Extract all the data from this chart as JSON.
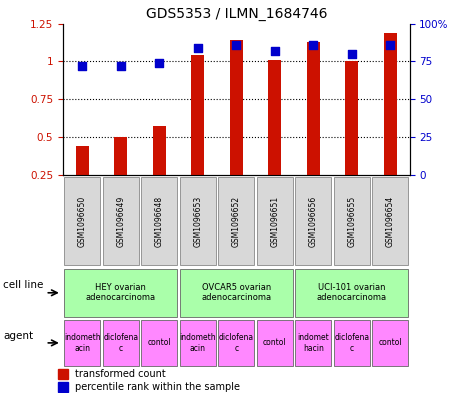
{
  "title": "GDS5353 / ILMN_1684746",
  "samples": [
    "GSM1096650",
    "GSM1096649",
    "GSM1096648",
    "GSM1096653",
    "GSM1096652",
    "GSM1096651",
    "GSM1096656",
    "GSM1096655",
    "GSM1096654"
  ],
  "transformed_count": [
    0.44,
    0.5,
    0.57,
    1.04,
    1.14,
    1.01,
    1.13,
    1.0,
    1.19
  ],
  "percentile_rank": [
    72,
    72,
    74,
    84,
    86,
    82,
    86,
    80,
    86
  ],
  "bar_color": "#cc1100",
  "dot_color": "#0000cc",
  "ylim_left": [
    0.25,
    1.25
  ],
  "ylim_right": [
    0,
    100
  ],
  "yticks_left": [
    0.25,
    0.5,
    0.75,
    1.0,
    1.25
  ],
  "ytick_labels_left": [
    "0.25",
    "0.5",
    "0.75",
    "1",
    "1.25"
  ],
  "yticks_right": [
    0,
    25,
    50,
    75,
    100
  ],
  "ytick_labels_right": [
    "0",
    "25",
    "50",
    "75",
    "100%"
  ],
  "grid_yticks": [
    0.5,
    0.75,
    1.0
  ],
  "cell_lines": [
    {
      "label": "HEY ovarian\nadenocarcinoma",
      "start": 0,
      "end": 3,
      "color": "#aaffaa"
    },
    {
      "label": "OVCAR5 ovarian\nadenocarcinoma",
      "start": 3,
      "end": 6,
      "color": "#aaffaa"
    },
    {
      "label": "UCI-101 ovarian\nadenocarcinoma",
      "start": 6,
      "end": 9,
      "color": "#aaffaa"
    }
  ],
  "agents": [
    {
      "label": "indometh\nacin",
      "start": 0,
      "end": 1,
      "color": "#ff88ff"
    },
    {
      "label": "diclofena\nc",
      "start": 1,
      "end": 2,
      "color": "#ff88ff"
    },
    {
      "label": "contol",
      "start": 2,
      "end": 3,
      "color": "#ff88ff"
    },
    {
      "label": "indometh\nacin",
      "start": 3,
      "end": 4,
      "color": "#ff88ff"
    },
    {
      "label": "diclofena\nc",
      "start": 4,
      "end": 5,
      "color": "#ff88ff"
    },
    {
      "label": "contol",
      "start": 5,
      "end": 6,
      "color": "#ff88ff"
    },
    {
      "label": "indomet\nhacin",
      "start": 6,
      "end": 7,
      "color": "#ff88ff"
    },
    {
      "label": "diclofena\nc",
      "start": 7,
      "end": 8,
      "color": "#ff88ff"
    },
    {
      "label": "contol",
      "start": 8,
      "end": 9,
      "color": "#ff88ff"
    }
  ],
  "legend_bar_label": "transformed count",
  "legend_dot_label": "percentile rank within the sample",
  "cell_line_label": "cell line",
  "agent_label": "agent",
  "background_color": "#ffffff",
  "tick_label_color_left": "#cc1100",
  "tick_label_color_right": "#0000cc",
  "bar_width": 0.35,
  "dot_size": 30,
  "sample_box_color": "#d8d8d8",
  "fig_width": 4.5,
  "fig_height": 3.93,
  "dpi": 100
}
